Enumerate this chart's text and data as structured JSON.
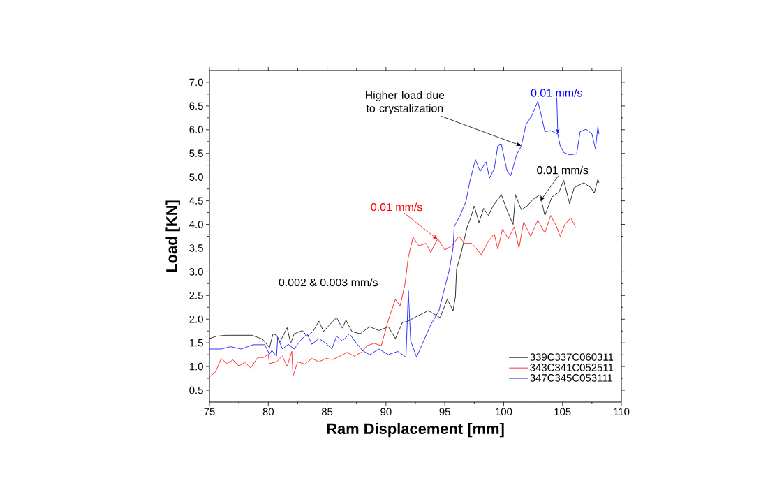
{
  "chart_data": {
    "type": "line",
    "xlabel": "Ram Displacement [mm]",
    "ylabel": "Load [KN]",
    "xlim": [
      75,
      110
    ],
    "ylim": [
      0.25,
      7.25
    ],
    "xticks": [
      75,
      80,
      85,
      90,
      95,
      100,
      105,
      110
    ],
    "yticks": [
      {
        "value": 0.5,
        "label": "0.5"
      },
      {
        "value": 1,
        "label": "1.0"
      },
      {
        "value": 1.5,
        "label": "1.5"
      },
      {
        "value": 2,
        "label": "2.0"
      },
      {
        "value": 2.5,
        "label": "2.5"
      },
      {
        "value": 3,
        "label": "3.0"
      },
      {
        "value": 3.5,
        "label": "3.5"
      },
      {
        "value": 4,
        "label": "4.0"
      },
      {
        "value": 4.5,
        "label": "4.5"
      },
      {
        "value": 5,
        "label": "5.0"
      },
      {
        "value": 5.5,
        "label": "5.5"
      },
      {
        "value": 6,
        "label": "6.0"
      },
      {
        "value": 6.5,
        "label": "6.5"
      },
      {
        "value": 7,
        "label": "7.0"
      }
    ],
    "legend": "bottom right",
    "marker": "none",
    "line_style": "solid",
    "series": [
      {
        "name": "339C337C060311",
        "color": "#000000",
        "x": [
          75,
          75.6,
          76.4,
          78.6,
          79.5,
          80.1,
          80.4,
          80.7,
          81.0,
          81.6,
          81.9,
          82.2,
          82.9,
          83.3,
          83.8,
          84.3,
          84.7,
          85.2,
          85.8,
          86.3,
          86.6,
          87.1,
          87.8,
          88.6,
          89.4,
          90.2,
          90.8,
          91.4,
          91.8,
          92.4,
          93.6,
          94.6,
          95.2,
          95.7,
          95.9,
          96.0,
          96.4,
          96.9,
          97.2,
          97.5,
          97.9,
          98.3,
          98.7,
          99.1,
          99.8,
          100.3,
          100.8,
          101.0,
          101.5,
          102.0,
          102.5,
          103.1,
          103.5,
          104.1,
          104.7,
          105.1,
          105.6,
          106.0,
          106.8,
          107.4,
          107.7,
          108.0,
          108.1
        ],
        "values": [
          1.59,
          1.64,
          1.66,
          1.66,
          1.58,
          1.4,
          1.69,
          1.66,
          1.52,
          1.82,
          1.49,
          1.69,
          1.76,
          1.64,
          1.74,
          1.96,
          1.74,
          1.88,
          2.03,
          1.81,
          1.98,
          1.74,
          1.69,
          1.84,
          1.76,
          1.84,
          1.59,
          1.93,
          1.95,
          2.03,
          2.18,
          2.03,
          2.42,
          2.18,
          2.47,
          3.06,
          3.41,
          3.95,
          4.14,
          4.39,
          4.04,
          4.34,
          4.19,
          4.39,
          4.63,
          4.29,
          4.0,
          4.63,
          4.31,
          4.39,
          4.53,
          4.63,
          4.19,
          4.58,
          4.68,
          4.93,
          4.44,
          4.78,
          4.88,
          4.78,
          4.66,
          4.95,
          4.88
        ]
      },
      {
        "name": "343C341C052511",
        "color": "#ff0000",
        "x": [
          75,
          75.5,
          76.0,
          76.5,
          77.0,
          77.5,
          78.0,
          78.5,
          79.1,
          79.6,
          80.0,
          80.1,
          80.7,
          81.2,
          81.6,
          82.0,
          82.1,
          82.5,
          83.1,
          83.7,
          84.3,
          84.9,
          85.5,
          86.1,
          86.7,
          87.3,
          87.9,
          88.4,
          89.0,
          89.6,
          90.2,
          90.8,
          91.2,
          91.6,
          91.9,
          92.3,
          92.8,
          93.4,
          93.8,
          94.4,
          95.0,
          95.6,
          96.2,
          96.7,
          97.3,
          98.1,
          98.7,
          99.2,
          99.5,
          99.9,
          100.4,
          100.9,
          101.3,
          101.7,
          102.3,
          102.9,
          103.5,
          104.0,
          104.5,
          104.8,
          105.2,
          105.7,
          106.1
        ],
        "values": [
          0.78,
          0.88,
          1.17,
          1.06,
          1.14,
          1.01,
          1.09,
          0.97,
          1.19,
          1.19,
          1.26,
          1.06,
          1.1,
          1.22,
          1.0,
          1.32,
          0.8,
          1.1,
          1.05,
          1.17,
          1.1,
          1.17,
          1.15,
          1.22,
          1.3,
          1.22,
          1.3,
          1.44,
          1.49,
          1.44,
          1.98,
          2.42,
          2.28,
          2.72,
          3.31,
          3.73,
          3.55,
          3.6,
          3.41,
          3.7,
          3.46,
          3.55,
          3.75,
          3.6,
          3.6,
          3.36,
          3.65,
          3.8,
          3.48,
          3.9,
          3.7,
          3.95,
          3.5,
          4.05,
          3.75,
          4.09,
          3.82,
          4.19,
          3.95,
          3.75,
          4.0,
          4.14,
          3.95
        ]
      },
      {
        "name": "347C345C053111",
        "color": "#0000ff",
        "x": [
          75,
          76.0,
          76.8,
          77.7,
          78.7,
          79.7,
          80.1,
          80.3,
          80.7,
          80.8,
          81.2,
          81.7,
          82.2,
          82.7,
          83.3,
          83.7,
          84.3,
          84.9,
          85.4,
          85.8,
          86.3,
          86.9,
          87.5,
          88.0,
          88.6,
          89.4,
          90.2,
          91.0,
          91.7,
          91.9,
          92.1,
          92.6,
          93.2,
          93.8,
          94.5,
          95.0,
          95.4,
          95.7,
          95.8,
          96.3,
          96.8,
          97.1,
          97.6,
          98.0,
          98.5,
          98.8,
          99.2,
          99.5,
          99.8,
          100.3,
          100.6,
          101.1,
          101.5,
          101.9,
          102.4,
          102.9,
          103.2,
          103.5,
          104.0,
          104.6,
          104.8,
          105.1,
          105.6,
          106.2,
          106.5,
          107.0,
          107.5,
          107.8,
          108.0,
          108.1
        ],
        "values": [
          1.37,
          1.37,
          1.42,
          1.37,
          1.46,
          1.46,
          1.26,
          1.34,
          1.22,
          1.61,
          1.37,
          1.47,
          1.37,
          1.54,
          1.69,
          1.47,
          1.59,
          1.49,
          1.37,
          1.64,
          1.54,
          1.69,
          1.49,
          1.34,
          1.25,
          1.37,
          1.25,
          1.32,
          1.2,
          2.6,
          1.54,
          1.2,
          1.54,
          1.88,
          2.18,
          2.67,
          3.06,
          3.5,
          3.95,
          4.19,
          4.49,
          4.88,
          5.37,
          5.12,
          5.32,
          4.98,
          5.17,
          5.66,
          5.69,
          5.12,
          5.03,
          5.47,
          5.66,
          6.11,
          6.3,
          6.6,
          6.3,
          5.96,
          5.98,
          5.91,
          5.66,
          5.52,
          5.47,
          5.49,
          5.96,
          6.01,
          5.91,
          5.59,
          6.06,
          5.91
        ]
      }
    ],
    "annotations": [
      {
        "text": "Higher load due to crystalization",
        "x": 101.5,
        "y": 5.66
      },
      {
        "text": "0.01 mm/s",
        "x": 104.6,
        "y": 5.91
      },
      {
        "text": "0.01 mm/s",
        "x": 103.1,
        "y": 4.49
      },
      {
        "text": "0.01 mm/s",
        "x": 94.4,
        "y": 3.68
      },
      "0.002 & 0.003 mm/s"
    ]
  }
}
